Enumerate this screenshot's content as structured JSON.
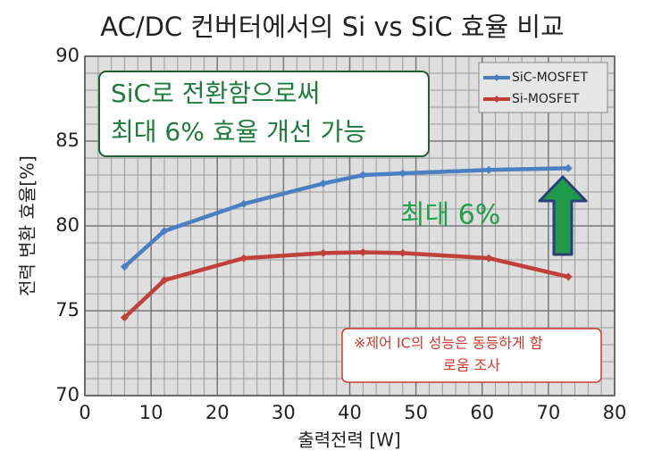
{
  "chart_data": {
    "type": "line",
    "title": "AC/DC 컨버터에서의 Si vs SiC 효율 비교",
    "x_label": "출력전력 [W]",
    "y_label": "전력 변환 효율[%]",
    "x": [
      6,
      12,
      24,
      36,
      42,
      48,
      61,
      73
    ],
    "series": [
      {
        "name": "SiC-MOSFET",
        "color": "#4a7fc1",
        "values": [
          77.6,
          79.7,
          81.3,
          82.5,
          83.0,
          83.1,
          83.3,
          83.4
        ]
      },
      {
        "name": "Si-MOSFET",
        "color": "#c0403a",
        "values": [
          74.6,
          76.8,
          78.1,
          78.4,
          78.45,
          78.4,
          78.1,
          77.0
        ]
      }
    ],
    "xlim": [
      0,
      80
    ],
    "xticks": [
      0,
      10,
      20,
      30,
      40,
      50,
      60,
      70,
      80
    ],
    "ylim": [
      70,
      90
    ],
    "yticks": [
      70,
      75,
      80,
      85,
      90
    ],
    "grid": true,
    "legend": "upper right",
    "annotations": {
      "main": [
        "SiC로 전환함으로써",
        "최대 6% 효율 개선 가능"
      ],
      "arrow_label": "최대 6%",
      "note": [
        "※제어 IC의 성능은 동등하게 함",
        "로움 조사"
      ]
    }
  }
}
